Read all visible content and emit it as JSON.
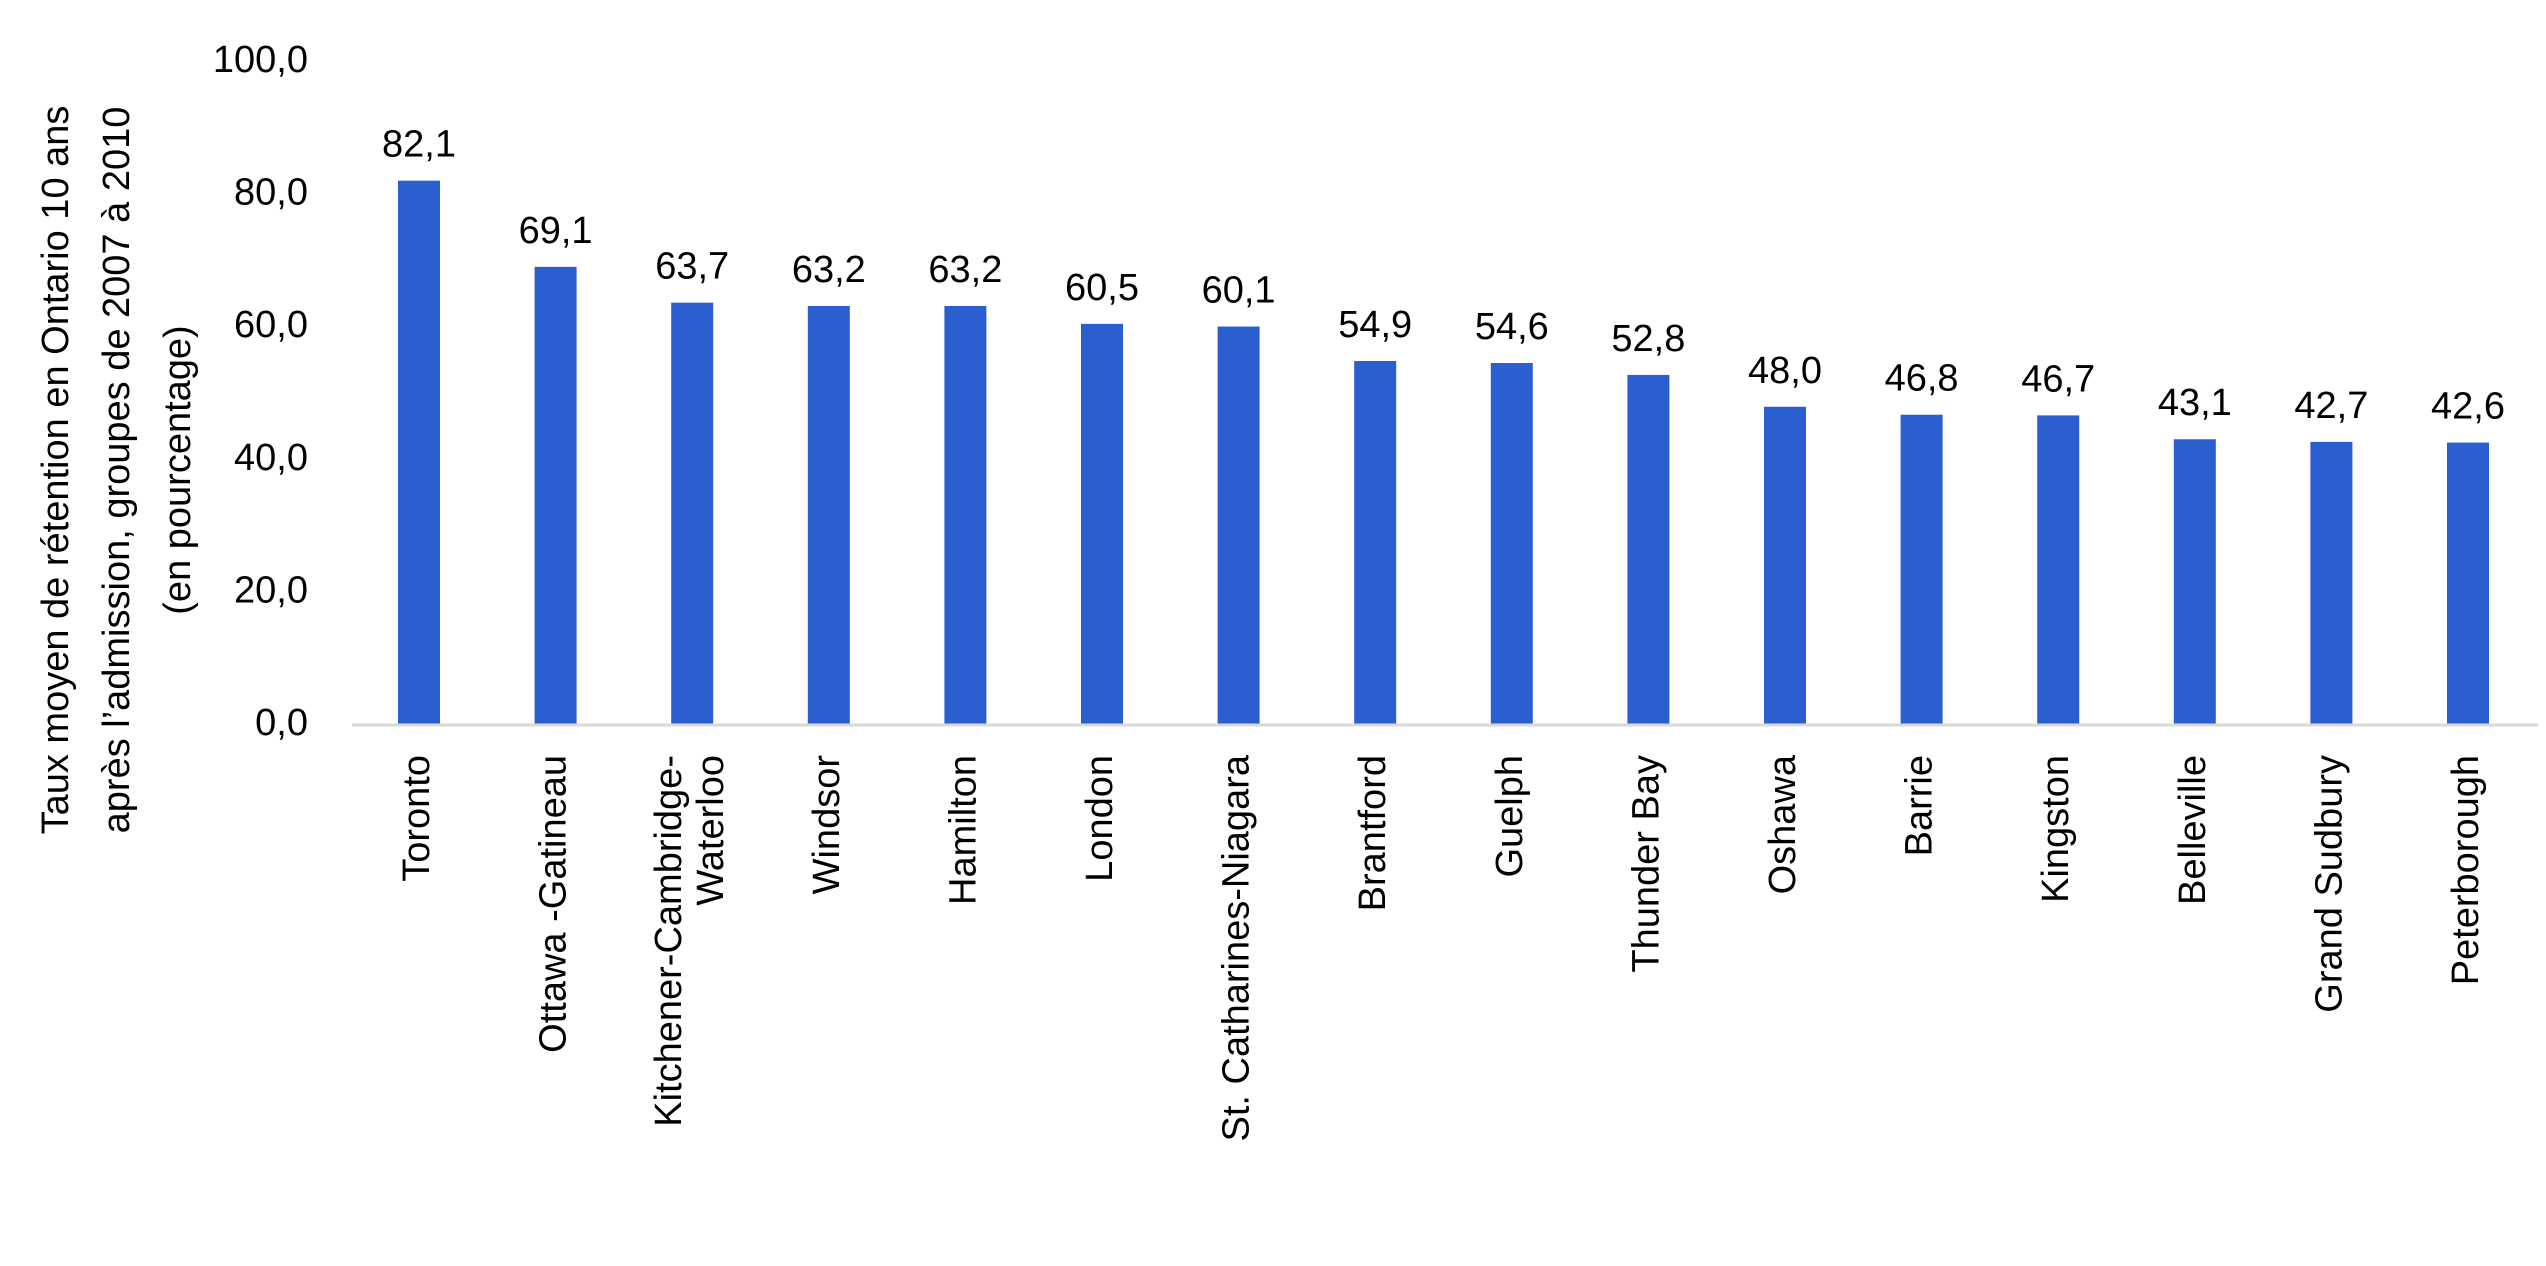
{
  "chart_data": {
    "type": "bar",
    "title": "",
    "xlabel": "",
    "ylabel_lines": [
      "Taux moyen de rétention en Ontario 10 ans",
      "après l’admission, groupes de 2007 à 2010",
      "(en pourcentage)"
    ],
    "ylim": [
      0,
      100
    ],
    "yticks": [
      "0,0",
      "20,0",
      "40,0",
      "60,0",
      "80,0",
      "100,0"
    ],
    "categories": [
      [
        "Toronto"
      ],
      [
        "Ottawa -Gatineau"
      ],
      [
        "Kitchener-Cambridge-",
        "Waterloo"
      ],
      [
        "Windsor"
      ],
      [
        "Hamilton"
      ],
      [
        "London"
      ],
      [
        "St. Catharines-Niagara"
      ],
      [
        "Brantford"
      ],
      [
        "Guelph"
      ],
      [
        "Thunder Bay"
      ],
      [
        "Oshawa"
      ],
      [
        "Barrie"
      ],
      [
        "Kingston"
      ],
      [
        "Belleville"
      ],
      [
        "Grand Sudbury"
      ],
      [
        "Peterborough"
      ]
    ],
    "values": [
      82.1,
      69.1,
      63.7,
      63.2,
      63.2,
      60.5,
      60.1,
      54.9,
      54.6,
      52.8,
      48.0,
      46.8,
      46.7,
      43.1,
      42.7,
      42.6
    ],
    "data_labels": [
      "82,1",
      "69,1",
      "63,7",
      "63,2",
      "63,2",
      "60,5",
      "60,1",
      "54,9",
      "54,6",
      "52,8",
      "48,0",
      "46,8",
      "46,7",
      "43,1",
      "42,7",
      "42,6"
    ],
    "bar_color": "#2b5fd0",
    "axis_color": "#d9d9d9",
    "grid": false,
    "legend": "none"
  }
}
